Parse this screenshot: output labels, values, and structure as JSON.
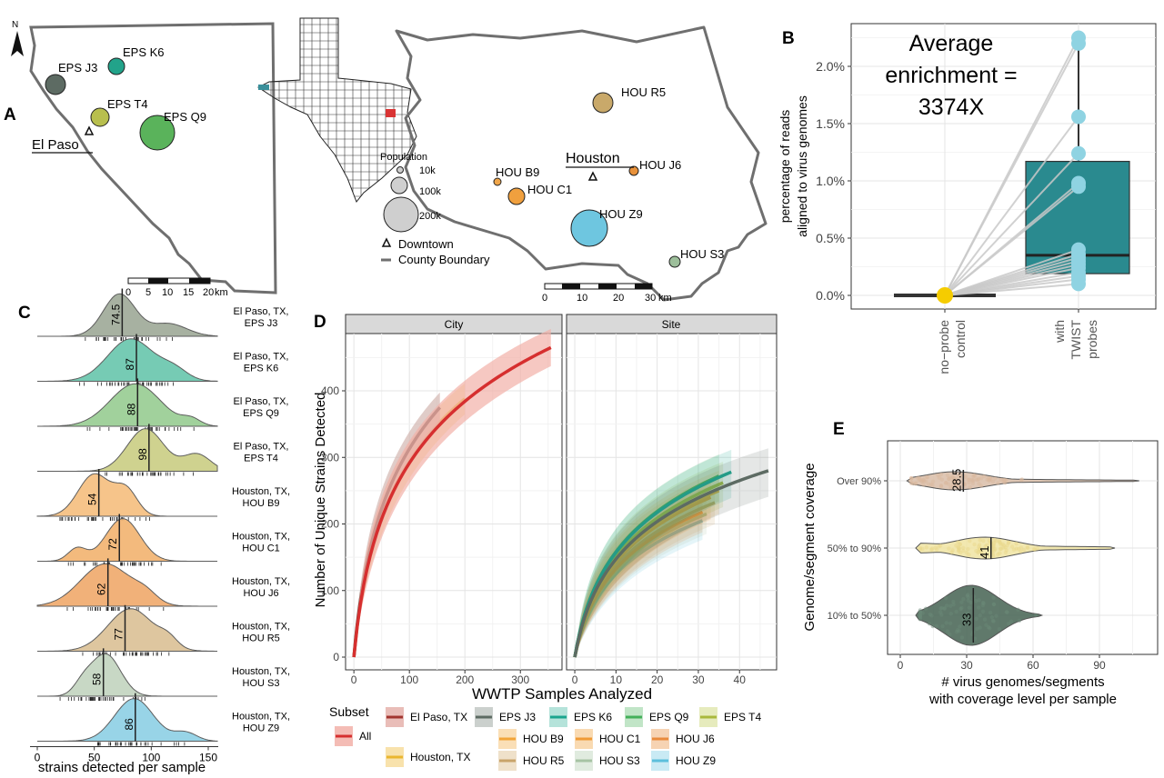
{
  "panels": {
    "A": "A",
    "B": "B",
    "C": "C",
    "D": "D",
    "E": "E"
  },
  "map": {
    "north": "N",
    "el_paso_label": "El Paso",
    "houston_label": "Houston",
    "el_paso_sites": [
      {
        "label": "EPS J3",
        "color": "#5d6b63"
      },
      {
        "label": "EPS K6",
        "color": "#22a38a"
      },
      {
        "label": "EPS T4",
        "color": "#b8bf4e"
      },
      {
        "label": "EPS Q9",
        "color": "#5ab35b"
      }
    ],
    "houston_sites": [
      {
        "label": "HOU R5",
        "color": "#c9a96a"
      },
      {
        "label": "HOU J6",
        "color": "#e8913a"
      },
      {
        "label": "HOU B9",
        "color": "#f0a64a"
      },
      {
        "label": "HOU C1",
        "color": "#f0a03e"
      },
      {
        "label": "HOU Z9",
        "color": "#6ec6e0"
      },
      {
        "label": "HOU S3",
        "color": "#9dbf9b"
      }
    ],
    "legend": {
      "title": "Population",
      "sizes": [
        "10k",
        "100k",
        "200k"
      ],
      "downtown": "Downtown",
      "county": "County Boundary"
    },
    "scale_ep": [
      "0",
      "5",
      "10",
      "15",
      "20",
      "km"
    ],
    "scale_hou": [
      "0",
      "10",
      "20",
      "30",
      "km"
    ]
  },
  "chart_data": [
    {
      "panel": "B",
      "type": "boxplot",
      "annotation": [
        "Average",
        "enrichment =",
        "3374X"
      ],
      "ylabel": [
        "percentage of reads",
        "aligned to virus genomes"
      ],
      "categories": [
        [
          "no−probe",
          "control"
        ],
        [
          "with",
          "TWIST",
          "probes"
        ]
      ],
      "ylim": [
        0,
        2.3
      ],
      "yticks": [
        "0.0%",
        "0.5%",
        "1.0%",
        "1.5%",
        "2.0%"
      ],
      "ytick_values": [
        0,
        0.5,
        1.0,
        1.5,
        2.0
      ],
      "control_values": [
        0,
        0,
        0,
        0,
        0,
        0,
        0,
        0,
        0,
        0,
        0,
        0,
        0,
        0,
        0,
        0
      ],
      "probe_values": [
        2.25,
        2.2,
        1.56,
        1.24,
        0.98,
        0.95,
        0.4,
        0.36,
        0.33,
        0.3,
        0.27,
        0.24,
        0.2,
        0.17,
        0.14,
        0.1
      ],
      "box": {
        "q1": 0.19,
        "median": 0.35,
        "q3": 1.17,
        "whisker_low": 0.1,
        "whisker_high": 2.2
      },
      "box_color": "#2a8a8f",
      "point_color": "#8fd3e2",
      "control_color": "#f5cc00"
    },
    {
      "panel": "C",
      "type": "density",
      "xlabel": "strains detected per sample",
      "xticks": [
        "0",
        "50",
        "100",
        "150"
      ],
      "xtick_values": [
        0,
        50,
        100,
        150
      ],
      "xlim": [
        0,
        160
      ],
      "rows": [
        {
          "label": [
            "El Paso, TX,",
            "EPS J3"
          ],
          "median": 74.5,
          "median_label": "74.5",
          "color": "#a3ad9d",
          "peaks": [
            [
              72,
              14,
              1.0
            ],
            [
              115,
              16,
              0.3
            ]
          ]
        },
        {
          "label": [
            "El Paso, TX,",
            "EPS K6"
          ],
          "median": 87,
          "median_label": "87",
          "color": "#6fc9b1",
          "peaks": [
            [
              82,
              20,
              1.0
            ],
            [
              120,
              12,
              0.25
            ]
          ]
        },
        {
          "label": [
            "El Paso, TX,",
            "EPS Q9"
          ],
          "median": 88,
          "median_label": "88",
          "color": "#9dcf97",
          "peaks": [
            [
              86,
              22,
              1.0
            ],
            [
              135,
              8,
              0.15
            ]
          ]
        },
        {
          "label": [
            "El Paso, TX,",
            "EPS T4"
          ],
          "median": 98,
          "median_label": "98",
          "color": "#cdd08a",
          "peaks": [
            [
              95,
              16,
              1.0
            ],
            [
              140,
              12,
              0.4
            ]
          ]
        },
        {
          "label": [
            "Houston, TX,",
            "HOU B9"
          ],
          "median": 54,
          "median_label": "54",
          "color": "#f6c184",
          "peaks": [
            [
              50,
              14,
              1.0
            ],
            [
              78,
              10,
              0.6
            ]
          ]
        },
        {
          "label": [
            "Houston, TX,",
            "HOU C1"
          ],
          "median": 72,
          "median_label": "72",
          "color": "#f3b777",
          "peaks": [
            [
              75,
              15,
              1.0
            ],
            [
              35,
              8,
              0.3
            ]
          ]
        },
        {
          "label": [
            "Houston, TX,",
            "HOU J6"
          ],
          "median": 62,
          "median_label": "62",
          "color": "#f1ad72",
          "peaks": [
            [
              60,
              22,
              1.0
            ],
            [
              95,
              10,
              0.2
            ]
          ]
        },
        {
          "label": [
            "Houston, TX,",
            "HOU R5"
          ],
          "median": 77,
          "median_label": "77",
          "color": "#ddc39a",
          "peaks": [
            [
              82,
              20,
              1.0
            ],
            [
              115,
              8,
              0.2
            ]
          ]
        },
        {
          "label": [
            "Houston, TX,",
            "HOU S3"
          ],
          "median": 58,
          "median_label": "58",
          "color": "#c6d6c2",
          "peaks": [
            [
              60,
              13,
              1.0
            ],
            [
              40,
              8,
              0.25
            ]
          ]
        },
        {
          "label": [
            "Houston, TX,",
            "HOU Z9"
          ],
          "median": 86,
          "median_label": "86",
          "color": "#93d2e6",
          "peaks": [
            [
              85,
              17,
              1.0
            ],
            [
              130,
              10,
              0.2
            ]
          ]
        }
      ]
    },
    {
      "panel": "D",
      "type": "line",
      "facets": [
        "City",
        "Site"
      ],
      "xlabel": "WWTP Samples Analyzed",
      "ylabel": "Number of Unique Strains Detected",
      "ylim": [
        0,
        470
      ],
      "yticks": [
        0,
        100,
        200,
        300,
        400
      ],
      "city": {
        "xlim": [
          -15,
          375
        ],
        "xticks": [
          0,
          100,
          200,
          300
        ],
        "series": [
          {
            "name": "All",
            "color": "#d62f2f",
            "band": "#f2b0a8",
            "xmax": 355,
            "ymax": 465
          },
          {
            "name": "El Paso, TX",
            "color": "#6b4f46",
            "band": "#d3b7b0",
            "xmax": 155,
            "ymax": 375
          },
          {
            "name": "Houston, TX",
            "color": "#eab62f",
            "band": "#f7dd9e",
            "xmax": 200,
            "ymax": 388
          }
        ]
      },
      "site": {
        "xlim": [
          -2,
          49
        ],
        "xticks": [
          0,
          10,
          20,
          30,
          40
        ],
        "series": [
          {
            "name": "EPS J3",
            "color": "#5d6b63",
            "xmax": 47,
            "ymax": 280
          },
          {
            "name": "EPS K6",
            "color": "#1aa58e",
            "xmax": 38,
            "ymax": 278
          },
          {
            "name": "EPS Q9",
            "color": "#43b05a",
            "xmax": 35,
            "ymax": 272
          },
          {
            "name": "EPS T4",
            "color": "#a9b83d",
            "xmax": 36,
            "ymax": 262
          },
          {
            "name": "HOU B9",
            "color": "#f2a53a",
            "xmax": 35,
            "ymax": 250
          },
          {
            "name": "HOU C1",
            "color": "#f09a35",
            "xmax": 33,
            "ymax": 240
          },
          {
            "name": "HOU J6",
            "color": "#e98b3c",
            "xmax": 31,
            "ymax": 218
          },
          {
            "name": "HOU R5",
            "color": "#c8a46a",
            "xmax": 34,
            "ymax": 232
          },
          {
            "name": "HOU S3",
            "color": "#a7c3a4",
            "xmax": 32,
            "ymax": 215
          },
          {
            "name": "HOU Z9",
            "color": "#5cbfdc",
            "xmax": 31,
            "ymax": 205
          }
        ]
      },
      "legend": {
        "title": "Subset",
        "entries": [
          {
            "name": "All",
            "color": "#d62f2f",
            "band": "#f2b0a8"
          },
          {
            "name": "El Paso, TX",
            "color": "#a2352f",
            "band": "#e5b1ab"
          },
          {
            "name": "EPS J3",
            "color": "#5d6b63",
            "band": "#c2c8c4"
          },
          {
            "name": "EPS K6",
            "color": "#1aa58e",
            "band": "#a8ded3"
          },
          {
            "name": "EPS Q9",
            "color": "#43b05a",
            "band": "#b6e0bd"
          },
          {
            "name": "EPS T4",
            "color": "#a9b83d",
            "band": "#e2e7b2"
          },
          {
            "name": "Houston, TX",
            "color": "#eab62f",
            "band": "#f7dd9e"
          },
          {
            "name": "HOU B9",
            "color": "#f2a53a",
            "band": "#f9d9aa"
          },
          {
            "name": "HOU C1",
            "color": "#f09a35",
            "band": "#f8d3a4"
          },
          {
            "name": "HOU J6",
            "color": "#e98b3c",
            "band": "#f5cba6"
          },
          {
            "name": "HOU R5",
            "color": "#c8a46a",
            "band": "#ecdcc1"
          },
          {
            "name": "HOU S3",
            "color": "#a7c3a4",
            "band": "#dbe7d9"
          },
          {
            "name": "HOU Z9",
            "color": "#5cbfdc",
            "band": "#bfe6f2"
          }
        ]
      }
    },
    {
      "panel": "E",
      "type": "violin",
      "ylabel": "Genome/segment coverage",
      "xlabel": [
        "# virus genomes/segments",
        "with coverage level per sample"
      ],
      "xlim": [
        -5,
        115
      ],
      "xticks": [
        0,
        30,
        60,
        90
      ],
      "rows": [
        {
          "label": "Over 90%",
          "median": 28.5,
          "median_label": "28.5",
          "min": 3,
          "max": 108,
          "mode": 25,
          "color": "#dcc2ad",
          "point": "#d9b79e"
        },
        {
          "label": "50% to 90%",
          "median": 41,
          "median_label": "41",
          "min": 7,
          "max": 97,
          "mode": 38,
          "color": "#f1e6a8",
          "point": "#e8d889"
        },
        {
          "label": "10% to 50%",
          "median": 33,
          "median_label": "33",
          "min": 7,
          "max": 64,
          "mode": 32,
          "color": "#4f6b5c",
          "point": "#6b8a77"
        }
      ]
    }
  ]
}
